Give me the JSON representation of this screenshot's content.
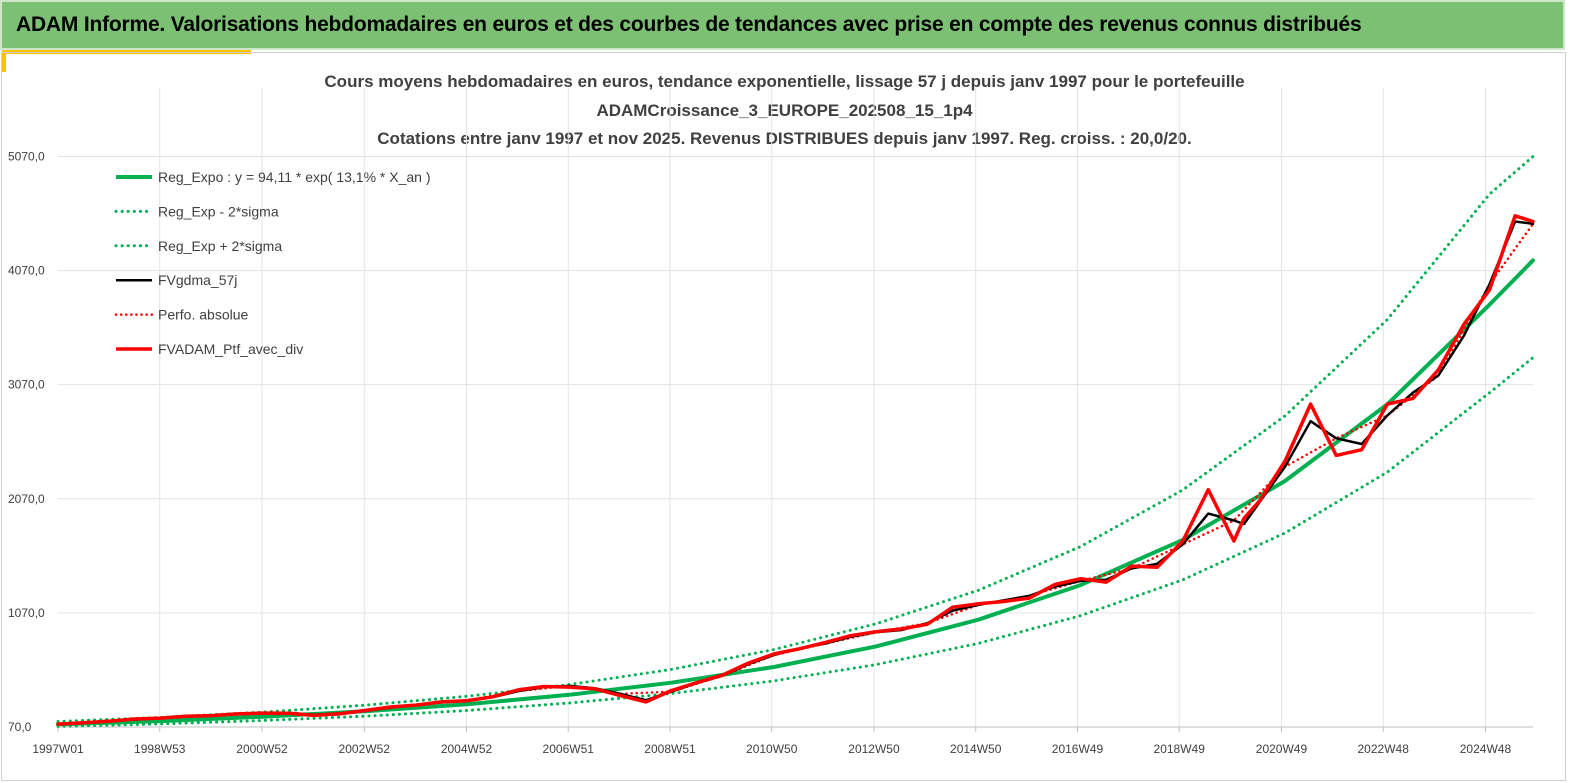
{
  "header": {
    "title": "ADAM Informe. Valorisations hebdomadaires en euros et des courbes de tendances avec prise en compte des revenus connus distribués"
  },
  "colors": {
    "banner": "#7cc173",
    "accent": "#ffc000",
    "reg_expo": "#00b050",
    "fvgdma": "#000000",
    "portfolio": "#ff0000"
  },
  "chart_data": {
    "type": "line",
    "title_lines": [
      "Cours moyens hebdomadaires  en euros, tendance exponentielle, lissage 57 j depuis janv 1997 pour le portefeuille",
      "ADAMCroissance_3_EUROPE_202508_15_1p4",
      "Cotations  entre janv 1997 et nov 2025. Revenus DISTRIBUES depuis janv 1997. Reg. croiss. : 20,0/20."
    ],
    "xlabel": "",
    "ylabel": "",
    "xlim": [
      1997.0,
      2025.85
    ],
    "ylim": [
      70,
      5670
    ],
    "y_ticks": [
      70,
      1070,
      2070,
      3070,
      4070,
      5070
    ],
    "y_tick_labels": [
      "70,0",
      "1070,0",
      "2070,0",
      "3070,0",
      "4070,0",
      "5070,0"
    ],
    "x_ticks": [
      1997.0,
      1998.99,
      2000.99,
      2002.99,
      2004.99,
      2006.98,
      2008.97,
      2010.96,
      2012.96,
      2014.95,
      2016.94,
      2018.93,
      2020.93,
      2022.92,
      2024.92
    ],
    "x_tick_labels": [
      "1997W01",
      "1998W53",
      "2000W52",
      "2002W52",
      "2004W52",
      "2006W51",
      "2008W51",
      "2010W50",
      "2012W50",
      "2014W50",
      "2016W49",
      "2018W49",
      "2020W49",
      "2022W48",
      "2024W48"
    ],
    "grid": true,
    "legend_position": "top-left",
    "regression": {
      "a": 94.11,
      "rate": 0.131
    },
    "series": [
      {
        "name": "Reg_Expo : y = 94,11 * exp( 13,1% *  X_an )",
        "style": "solid",
        "color": "#00b050",
        "x": [
          1997.0,
          1999.0,
          2001.0,
          2003.0,
          2005.0,
          2007.0,
          2009.0,
          2011.0,
          2013.0,
          2015.0,
          2017.0,
          2019.0,
          2021.0,
          2023.0,
          2025.0,
          2025.85
        ],
        "values": [
          94,
          122,
          160,
          208,
          270,
          352,
          458,
          596,
          776,
          1010,
          1314,
          1710,
          2226,
          2897,
          3771,
          4159
        ]
      },
      {
        "name": "Reg_Exp - 2*sigma",
        "style": "dotted",
        "color": "#00b050",
        "x": [
          1997.0,
          1999.0,
          2001.0,
          2003.0,
          2005.0,
          2007.0,
          2009.0,
          2011.0,
          2013.0,
          2015.0,
          2017.0,
          2019.0,
          2021.0,
          2023.0,
          2025.0,
          2025.85
        ],
        "values": [
          75,
          97,
          127,
          165,
          215,
          280,
          364,
          474,
          617,
          803,
          1045,
          1360,
          1770,
          2304,
          2999,
          3307
        ]
      },
      {
        "name": "Reg_Exp + 2*sigma",
        "style": "dotted",
        "color": "#00b050",
        "x": [
          1997.0,
          1999.0,
          2001.0,
          2003.0,
          2005.0,
          2007.0,
          2009.0,
          2011.0,
          2013.0,
          2015.0,
          2017.0,
          2019.0,
          2021.0,
          2023.0,
          2025.0,
          2025.85
        ],
        "values": [
          118,
          154,
          200,
          261,
          339,
          442,
          575,
          748,
          974,
          1268,
          1651,
          2148,
          2796,
          3640,
          4739,
          5070
        ]
      },
      {
        "name": "FVgdma_57j",
        "style": "solid",
        "color": "#000000",
        "x": [
          1997.0,
          1997.5,
          1998.0,
          1998.5,
          1999.0,
          1999.5,
          2000.0,
          2000.5,
          2001.0,
          2001.5,
          2002.0,
          2002.5,
          2003.0,
          2003.5,
          2004.0,
          2004.5,
          2005.0,
          2005.5,
          2006.0,
          2006.5,
          2007.0,
          2007.5,
          2008.0,
          2008.5,
          2009.0,
          2009.5,
          2010.0,
          2010.5,
          2011.0,
          2011.5,
          2012.0,
          2012.5,
          2013.0,
          2013.5,
          2014.0,
          2014.5,
          2015.0,
          2015.5,
          2016.0,
          2016.5,
          2017.0,
          2017.5,
          2018.0,
          2018.5,
          2019.0,
          2019.5,
          2020.0,
          2020.2,
          2020.5,
          2021.0,
          2021.5,
          2022.0,
          2022.5,
          2023.0,
          2023.5,
          2024.0,
          2024.5,
          2025.0,
          2025.5,
          2025.85
        ],
        "values": [
          95,
          105,
          125,
          135,
          150,
          160,
          172,
          180,
          190,
          195,
          178,
          188,
          210,
          240,
          265,
          285,
          305,
          330,
          385,
          420,
          430,
          410,
          360,
          305,
          380,
          455,
          520,
          620,
          700,
          760,
          800,
          860,
          900,
          920,
          980,
          1090,
          1140,
          1180,
          1220,
          1300,
          1350,
          1360,
          1460,
          1500,
          1670,
          1940,
          1880,
          1850,
          2040,
          2350,
          2750,
          2600,
          2550,
          2800,
          3000,
          3150,
          3500,
          3950,
          4500,
          4480
        ]
      },
      {
        "name": "Perfo. absolue",
        "style": "dotted",
        "color": "#ff0000",
        "x": [
          1997.0,
          1998.0,
          1999.0,
          2000.0,
          2001.0,
          2002.0,
          2003.0,
          2004.0,
          2005.0,
          2006.0,
          2007.0,
          2008.0,
          2009.0,
          2010.0,
          2011.0,
          2012.0,
          2013.0,
          2014.0,
          2015.0,
          2016.0,
          2017.0,
          2018.0,
          2019.0,
          2020.0,
          2021.0,
          2022.0,
          2023.0,
          2024.0,
          2025.0,
          2025.85
        ],
        "values": [
          95,
          125,
          150,
          172,
          190,
          178,
          210,
          265,
          305,
          385,
          430,
          360,
          380,
          520,
          700,
          800,
          900,
          980,
          1140,
          1220,
          1350,
          1460,
          1670,
          1880,
          2350,
          2600,
          2800,
          3150,
          3950,
          4480
        ]
      },
      {
        "name": "FVADAM_Ptf_avec_div",
        "style": "solid",
        "color": "#ff0000",
        "x": [
          1997.0,
          1997.5,
          1998.0,
          1998.5,
          1999.0,
          1999.5,
          2000.0,
          2000.5,
          2001.0,
          2001.5,
          2002.0,
          2002.5,
          2003.0,
          2003.5,
          2004.0,
          2004.5,
          2005.0,
          2005.5,
          2006.0,
          2006.5,
          2007.0,
          2007.5,
          2008.0,
          2008.5,
          2009.0,
          2009.5,
          2010.0,
          2010.5,
          2011.0,
          2011.5,
          2012.0,
          2012.5,
          2013.0,
          2013.5,
          2014.0,
          2014.5,
          2015.0,
          2015.5,
          2016.0,
          2016.5,
          2017.0,
          2017.5,
          2018.0,
          2018.5,
          2019.0,
          2019.5,
          2020.0,
          2020.2,
          2020.5,
          2021.0,
          2021.5,
          2022.0,
          2022.5,
          2023.0,
          2023.5,
          2024.0,
          2024.5,
          2025.0,
          2025.5,
          2025.85
        ],
        "values": [
          95,
          108,
          120,
          140,
          148,
          165,
          170,
          185,
          192,
          190,
          172,
          185,
          215,
          245,
          262,
          290,
          300,
          335,
          395,
          425,
          420,
          405,
          345,
          290,
          390,
          460,
          525,
          630,
          710,
          755,
          810,
          870,
          905,
          930,
          970,
          1120,
          1150,
          1170,
          1200,
          1320,
          1370,
          1340,
          1480,
          1470,
          1700,
          2150,
          1700,
          1900,
          2050,
          2400,
          2900,
          2450,
          2500,
          2900,
          2950,
          3200,
          3600,
          3900,
          4550,
          4500
        ]
      }
    ]
  }
}
